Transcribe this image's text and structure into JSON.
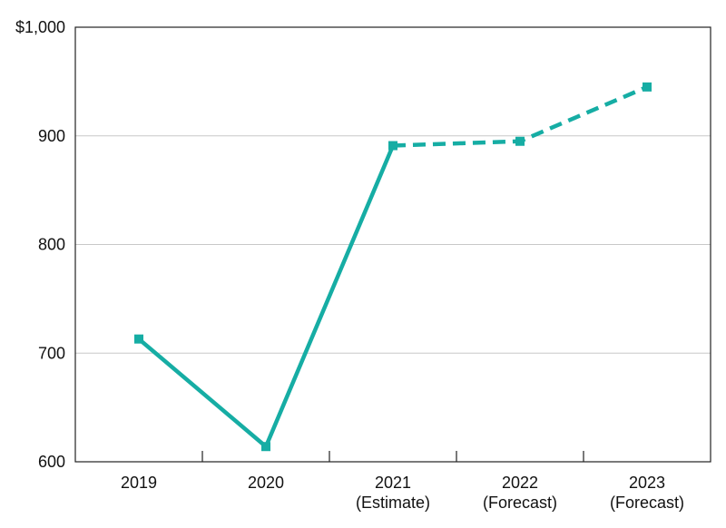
{
  "chart_data": {
    "type": "line",
    "title": "",
    "xlabel": "",
    "ylabel": "",
    "categories": [
      [
        "2019"
      ],
      [
        "2020"
      ],
      [
        "2021",
        "(Estimate)"
      ],
      [
        "2022",
        "(Forecast)"
      ],
      [
        "2023",
        "(Forecast)"
      ]
    ],
    "series": [
      {
        "values": [
          713,
          614,
          891,
          895,
          945
        ],
        "color": "#16ADA4",
        "marker": "square",
        "dashed_from_index": 2
      }
    ],
    "y_ticks": [
      {
        "value": 600,
        "label": "600"
      },
      {
        "value": 700,
        "label": "700"
      },
      {
        "value": 800,
        "label": "800"
      },
      {
        "value": 900,
        "label": "900"
      },
      {
        "value": 1000,
        "label": "$1,000"
      }
    ],
    "ylim": [
      600,
      1000
    ],
    "grid": true,
    "legend": "none"
  }
}
